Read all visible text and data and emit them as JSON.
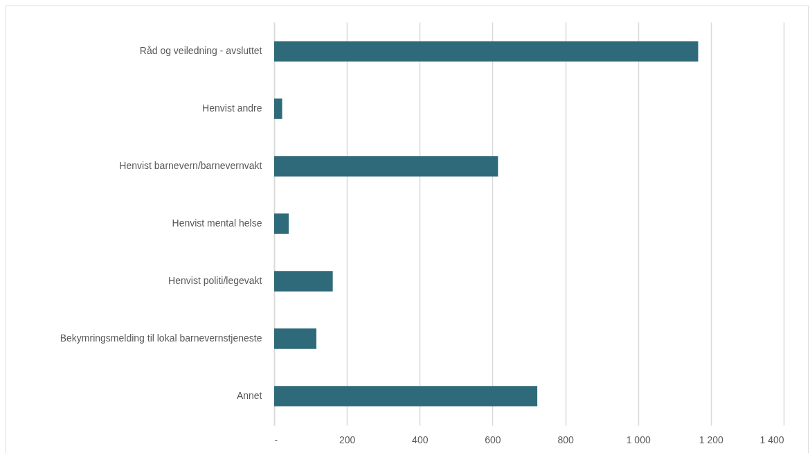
{
  "chart_data": {
    "type": "bar",
    "orientation": "horizontal",
    "categories": [
      "Råd og veiledning - avsluttet",
      "Henvist andre",
      "Henvist barnevern/barnevernvakt",
      "Henvist mental helse",
      "Henvist politi/legevakt",
      "Bekymringsmelding til lokal barnevernstjeneste",
      "Annet"
    ],
    "values": [
      1165,
      22,
      615,
      40,
      161,
      116,
      723
    ],
    "color": "#2f6a7a",
    "xlim": [
      0,
      1400
    ],
    "xticks": [
      {
        "value": 0,
        "label": "-"
      },
      200,
      400,
      600,
      800,
      {
        "value": 1000,
        "label": "1 000"
      },
      {
        "value": 1200,
        "label": "1 200"
      },
      {
        "value": 1400,
        "label": "1 400"
      }
    ],
    "grid": "x"
  }
}
